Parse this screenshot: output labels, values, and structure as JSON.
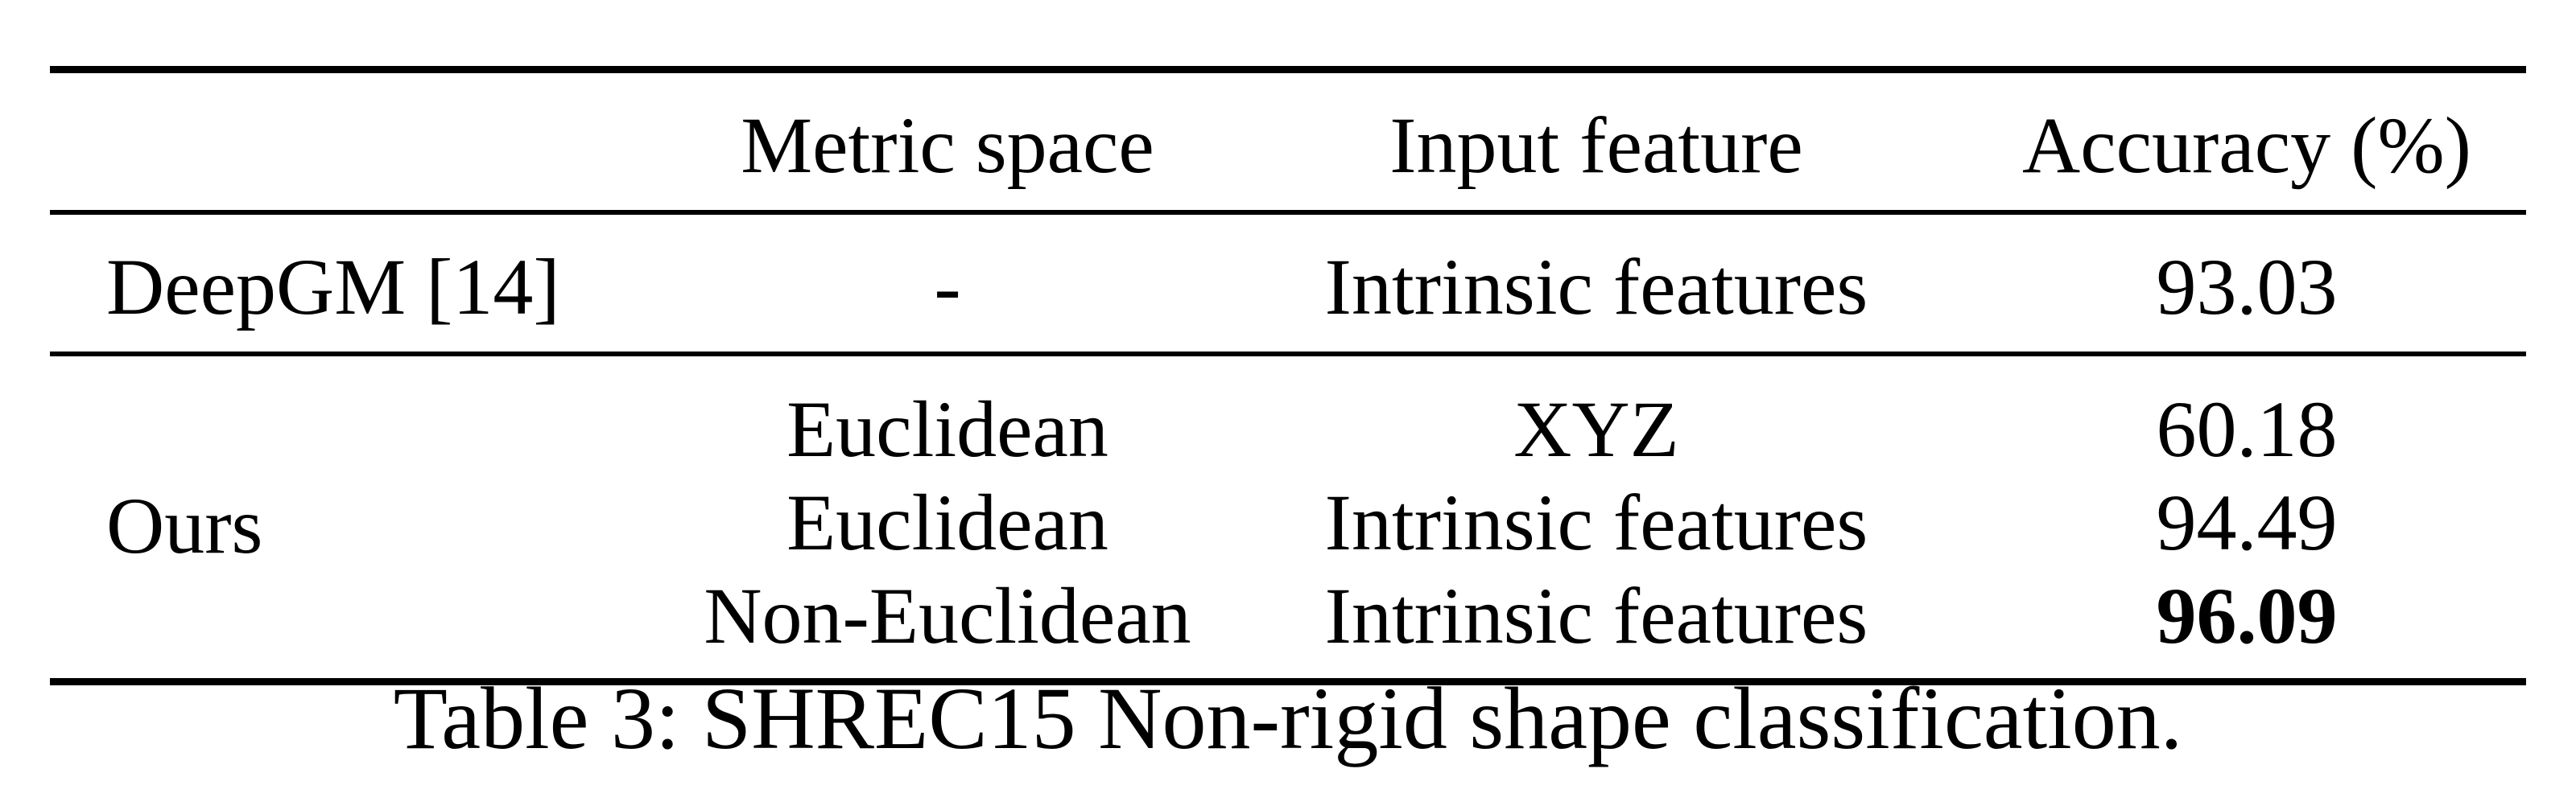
{
  "table": {
    "headers": [
      "",
      "Metric space",
      "Input feature",
      "Accuracy (%)"
    ],
    "deepgm_row": {
      "method": "DeepGM [14]",
      "metric_space": "-",
      "input_feature": "Intrinsic features",
      "accuracy": "93.03"
    },
    "ours": {
      "method": "Ours",
      "rows": [
        {
          "metric_space": "Euclidean",
          "input_feature": "XYZ",
          "accuracy": "60.18",
          "best": false
        },
        {
          "metric_space": "Euclidean",
          "input_feature": "Intrinsic features",
          "accuracy": "94.49",
          "best": false
        },
        {
          "metric_space": "Non-Euclidean",
          "input_feature": "Intrinsic features",
          "accuracy": "96.09",
          "best": true
        }
      ]
    }
  },
  "caption": "Table 3: SHREC15 Non-rigid shape classification."
}
